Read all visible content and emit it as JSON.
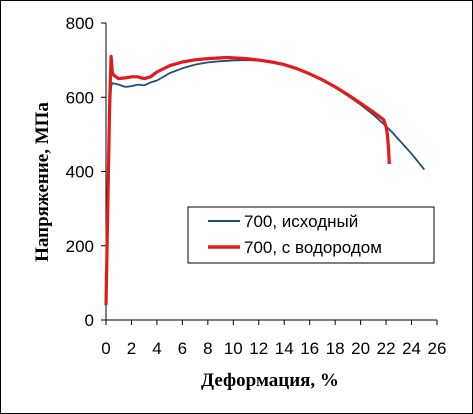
{
  "chart_data": {
    "type": "line",
    "title": "",
    "xlabel": "Деформация, %",
    "ylabel": "Напряжение, МПа",
    "xlim": [
      0,
      26
    ],
    "ylim": [
      0,
      800
    ],
    "xticks": [
      "0",
      "2",
      "4",
      "6",
      "8",
      "10",
      "12",
      "14",
      "16",
      "18",
      "20",
      "22",
      "24",
      "26"
    ],
    "yticks": [
      "0",
      "200",
      "400",
      "600",
      "800"
    ],
    "grid": false,
    "legend_position": "right",
    "series": [
      {
        "name": "700, исходный",
        "color": "#1f4e79",
        "x": [
          0,
          0.15,
          0.3,
          0.4,
          0.5,
          1.0,
          1.5,
          2.0,
          2.5,
          3.0,
          3.5,
          4.0,
          5.0,
          6.0,
          7.0,
          8.0,
          9.0,
          10.0,
          11.0,
          12.0,
          13.0,
          14.0,
          15.0,
          16.0,
          17.0,
          18.0,
          19.0,
          20.0,
          21.0,
          22.0,
          22.5,
          23.0,
          24.0,
          25.0
        ],
        "y": [
          40,
          300,
          550,
          630,
          638,
          634,
          628,
          630,
          634,
          632,
          640,
          645,
          665,
          678,
          688,
          694,
          697,
          699,
          700,
          699,
          695,
          687,
          676,
          662,
          645,
          626,
          604,
          580,
          553,
          522,
          505,
          486,
          448,
          405
        ]
      },
      {
        "name": "700, с водородом",
        "color": "#e31a1c",
        "x": [
          0,
          0.15,
          0.3,
          0.4,
          0.5,
          0.6,
          1.0,
          1.5,
          2.0,
          2.5,
          3.0,
          3.5,
          4.0,
          5.0,
          6.0,
          7.0,
          8.0,
          9.0,
          9.5,
          10.0,
          11.0,
          12.0,
          13.0,
          14.0,
          15.0,
          16.0,
          17.0,
          18.0,
          19.0,
          20.0,
          21.0,
          21.8,
          22.0,
          22.1,
          22.2,
          22.25
        ],
        "y": [
          40,
          320,
          600,
          710,
          665,
          660,
          650,
          652,
          655,
          655,
          650,
          655,
          668,
          685,
          695,
          701,
          704,
          706,
          707,
          706,
          704,
          700,
          695,
          688,
          677,
          663,
          647,
          628,
          607,
          584,
          560,
          540,
          520,
          500,
          460,
          420
        ]
      }
    ]
  }
}
